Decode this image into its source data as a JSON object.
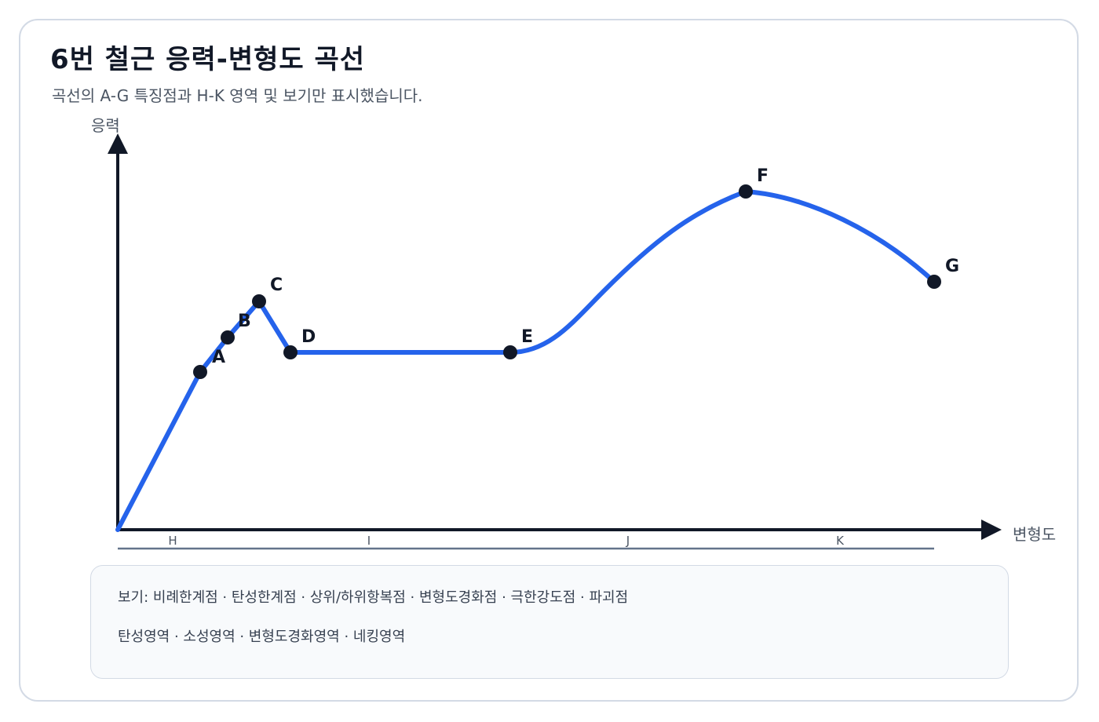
{
  "header": {
    "title": "6번 철근 응력-변형도 곡선",
    "subtitle": "곡선의 A-G 특징점과 H-K 영역 및 보기만 표시했습니다."
  },
  "chart_data": {
    "type": "line",
    "y_axis_label": "응력",
    "x_axis_label": "변형도",
    "points": [
      {
        "label": "A"
      },
      {
        "label": "B"
      },
      {
        "label": "C"
      },
      {
        "label": "D"
      },
      {
        "label": "E"
      },
      {
        "label": "F"
      },
      {
        "label": "G"
      }
    ],
    "regions": [
      {
        "label": "H"
      },
      {
        "label": "I"
      },
      {
        "label": "J"
      },
      {
        "label": "K"
      }
    ],
    "curve_color": "#2563eb",
    "axis_color": "#111827",
    "point_color": "#111827"
  },
  "legend": {
    "line1": "보기: 비례한계점 · 탄성한계점 · 상위/하위항복점 · 변형도경화점 · 극한강도점 · 파괴점",
    "line2": "탄성영역 · 소성영역 · 변형도경화영역 · 네킹영역"
  }
}
